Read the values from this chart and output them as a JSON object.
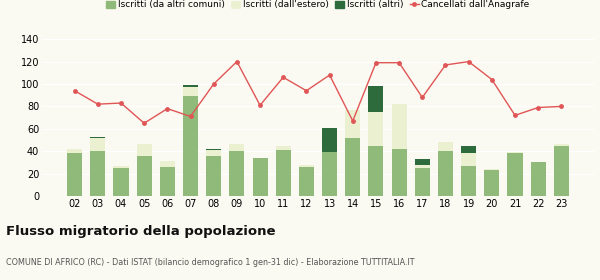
{
  "years": [
    "02",
    "03",
    "04",
    "05",
    "06",
    "07",
    "08",
    "09",
    "10",
    "11",
    "12",
    "13",
    "14",
    "15",
    "16",
    "17",
    "18",
    "19",
    "20",
    "21",
    "22",
    "23"
  ],
  "iscritti_comuni": [
    38,
    40,
    25,
    36,
    26,
    89,
    36,
    40,
    34,
    41,
    26,
    39,
    52,
    45,
    42,
    25,
    40,
    27,
    23,
    38,
    30,
    45
  ],
  "iscritti_estero": [
    4,
    12,
    2,
    10,
    5,
    8,
    5,
    6,
    0,
    4,
    2,
    0,
    25,
    30,
    40,
    3,
    8,
    11,
    1,
    1,
    0,
    1
  ],
  "iscritti_altri": [
    0,
    1,
    0,
    0,
    0,
    2,
    1,
    0,
    0,
    0,
    0,
    22,
    0,
    23,
    0,
    5,
    0,
    7,
    0,
    0,
    0,
    0
  ],
  "cancellati": [
    94,
    82,
    83,
    65,
    78,
    71,
    100,
    120,
    81,
    106,
    94,
    108,
    67,
    119,
    119,
    88,
    117,
    120,
    104,
    72,
    79,
    80
  ],
  "color_comuni": "#8fba7a",
  "color_estero": "#eaf0d0",
  "color_altri": "#2d6b3c",
  "color_cancellati": "#e05555",
  "legend_labels": [
    "Iscritti (da altri comuni)",
    "Iscritti (dall'estero)",
    "Iscritti (altri)",
    "Cancellati dall'Anagrafe"
  ],
  "title": "Flusso migratorio della popolazione",
  "subtitle": "COMUNE DI AFRICO (RC) - Dati ISTAT (bilancio demografico 1 gen-31 dic) - Elaborazione TUTTITALIA.IT",
  "ylim": [
    0,
    140
  ],
  "yticks": [
    0,
    20,
    40,
    60,
    80,
    100,
    120,
    140
  ],
  "bg_color": "#fafaf2"
}
